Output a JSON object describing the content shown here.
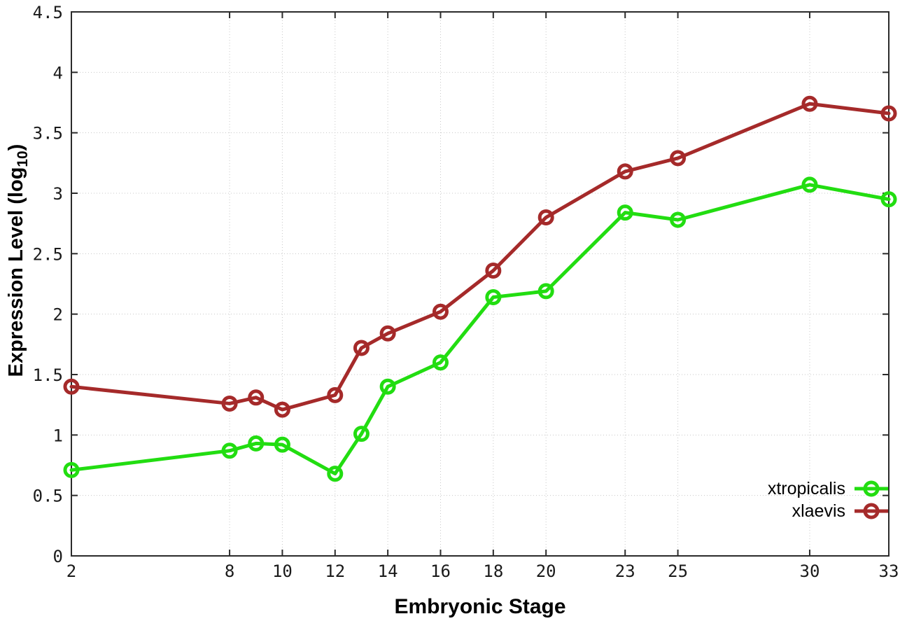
{
  "chart": {
    "xlabel": "Embryonic Stage",
    "ylabel_prefix": "Expression Level (log",
    "ylabel_sub": "10",
    "ylabel_suffix": ")"
  },
  "chart_data": {
    "type": "line",
    "title": "",
    "xlabel": "Embryonic Stage",
    "ylabel": "Expression Level (log10)",
    "x": [
      2,
      8,
      9,
      10,
      12,
      13,
      14,
      16,
      18,
      20,
      23,
      25,
      30,
      33
    ],
    "series": [
      {
        "name": "xtropicalis",
        "color": "#22dd11",
        "values": [
          0.71,
          0.87,
          0.93,
          0.92,
          0.68,
          1.01,
          1.4,
          1.6,
          2.14,
          2.19,
          2.84,
          2.78,
          3.07,
          2.95
        ]
      },
      {
        "name": "xlaevis",
        "color": "#a52a2a",
        "values": [
          1.4,
          1.26,
          1.31,
          1.21,
          1.33,
          1.72,
          1.84,
          2.02,
          2.36,
          2.8,
          3.18,
          3.29,
          3.74,
          3.66
        ]
      }
    ],
    "xticks": [
      2,
      8,
      10,
      12,
      14,
      16,
      18,
      20,
      23,
      25,
      30,
      33
    ],
    "yticks": [
      0,
      0.5,
      1,
      1.5,
      2,
      2.5,
      3,
      3.5,
      4,
      4.5
    ],
    "xlim": [
      2,
      33
    ],
    "ylim": [
      0,
      4.5
    ],
    "grid": true,
    "legend_position": "bottom-right",
    "marker": "open-circle",
    "axis_color": "#2b2b2b",
    "grid_color": "#c8c8c8"
  }
}
